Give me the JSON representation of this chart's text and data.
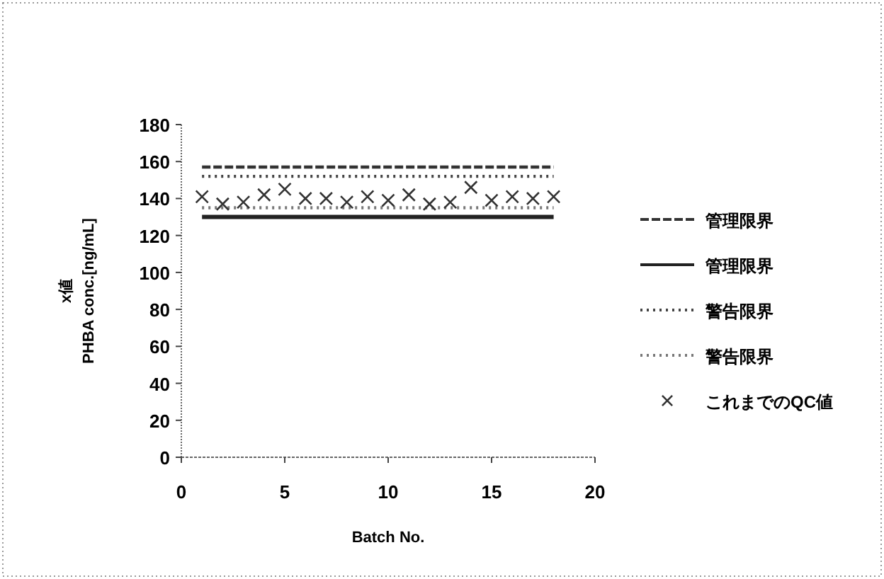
{
  "chart_data": {
    "type": "line",
    "xlabel": "Batch No.",
    "ylabel": "x値\nPHBA conc.[ng/mL]",
    "xlim": [
      0,
      20
    ],
    "xticks": [
      0,
      5,
      10,
      15,
      20
    ],
    "ylim": [
      0,
      180
    ],
    "yticks": [
      0,
      20,
      40,
      60,
      80,
      100,
      120,
      140,
      160,
      180
    ],
    "grid": false,
    "legend": "right",
    "series": [
      {
        "name": "管理限界",
        "color": "#333333",
        "line_style": "dashed",
        "x": [
          1,
          18
        ],
        "values": [
          157,
          157
        ]
      },
      {
        "name": "管理限界",
        "color": "#222222",
        "line_style": "solid",
        "x": [
          1,
          18
        ],
        "values": [
          130,
          130
        ]
      },
      {
        "name": "警告限界",
        "color": "#444444",
        "line_style": "dotted",
        "x": [
          1,
          18
        ],
        "values": [
          152,
          152
        ]
      },
      {
        "name": "警告限界",
        "color": "#777777",
        "line_style": "dotted",
        "x": [
          1,
          18
        ],
        "values": [
          135,
          135
        ]
      },
      {
        "name": "これまでのQC値",
        "type": "scatter",
        "color": "#333333",
        "marker": "cross",
        "x": [
          1,
          2,
          3,
          4,
          5,
          6,
          7,
          8,
          9,
          10,
          11,
          12,
          13,
          14,
          15,
          16,
          17,
          18
        ],
        "values": [
          141,
          137,
          138,
          142,
          145,
          140,
          140,
          138,
          141,
          139,
          142,
          137,
          138,
          146,
          139,
          141,
          140,
          141
        ]
      }
    ]
  }
}
